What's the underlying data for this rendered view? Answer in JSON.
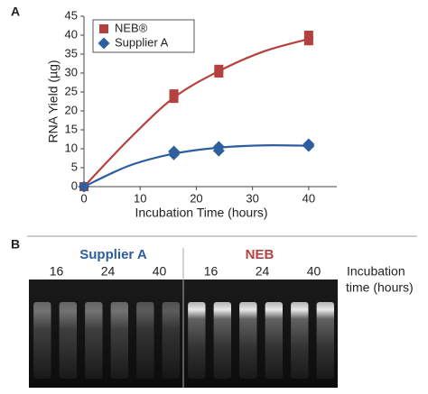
{
  "chart_data": {
    "type": "scatter",
    "panel_label": "A",
    "xlabel": "Incubation Time (hours)",
    "ylabel": "RNA Yield (µg)",
    "xlim": [
      0,
      45
    ],
    "xticks": [
      0,
      10,
      20,
      30,
      40
    ],
    "ylim": [
      0,
      45
    ],
    "yticks": [
      0,
      5,
      10,
      15,
      20,
      25,
      30,
      35,
      40,
      45
    ],
    "legend": "upper left",
    "series": [
      {
        "name": "NEB®",
        "color": "#b5413f",
        "marker": "square",
        "x": [
          0,
          16,
          16,
          24,
          24,
          40,
          40
        ],
        "values": [
          0,
          23.3,
          24.5,
          30,
          31,
          38.5,
          40
        ],
        "fit": {
          "x": [
            0,
            8,
            16,
            24,
            32,
            40
          ],
          "values": [
            0,
            12.5,
            23.5,
            30.5,
            35.7,
            39
          ]
        }
      },
      {
        "name": "Supplier A",
        "color": "#2e5e9e",
        "marker": "diamond",
        "x": [
          0,
          16,
          16,
          24,
          24,
          40,
          40
        ],
        "values": [
          0,
          8.5,
          9.3,
          9.5,
          10.5,
          10.7,
          11.2
        ],
        "fit": {
          "x": [
            0,
            8,
            16,
            24,
            32,
            40
          ],
          "values": [
            0,
            5.5,
            8.7,
            10.3,
            10.9,
            10.8
          ]
        }
      }
    ]
  },
  "gel": {
    "panel_label": "B",
    "groups": [
      {
        "name": "Supplier A",
        "color": "#2e5e9e",
        "lanes": [
          "16",
          "24",
          "40"
        ]
      },
      {
        "name": "NEB",
        "color": "#b5413f",
        "lanes": [
          "16",
          "24",
          "40"
        ]
      }
    ],
    "lane_axis_label": [
      "Incubation",
      "time (hours)"
    ]
  }
}
